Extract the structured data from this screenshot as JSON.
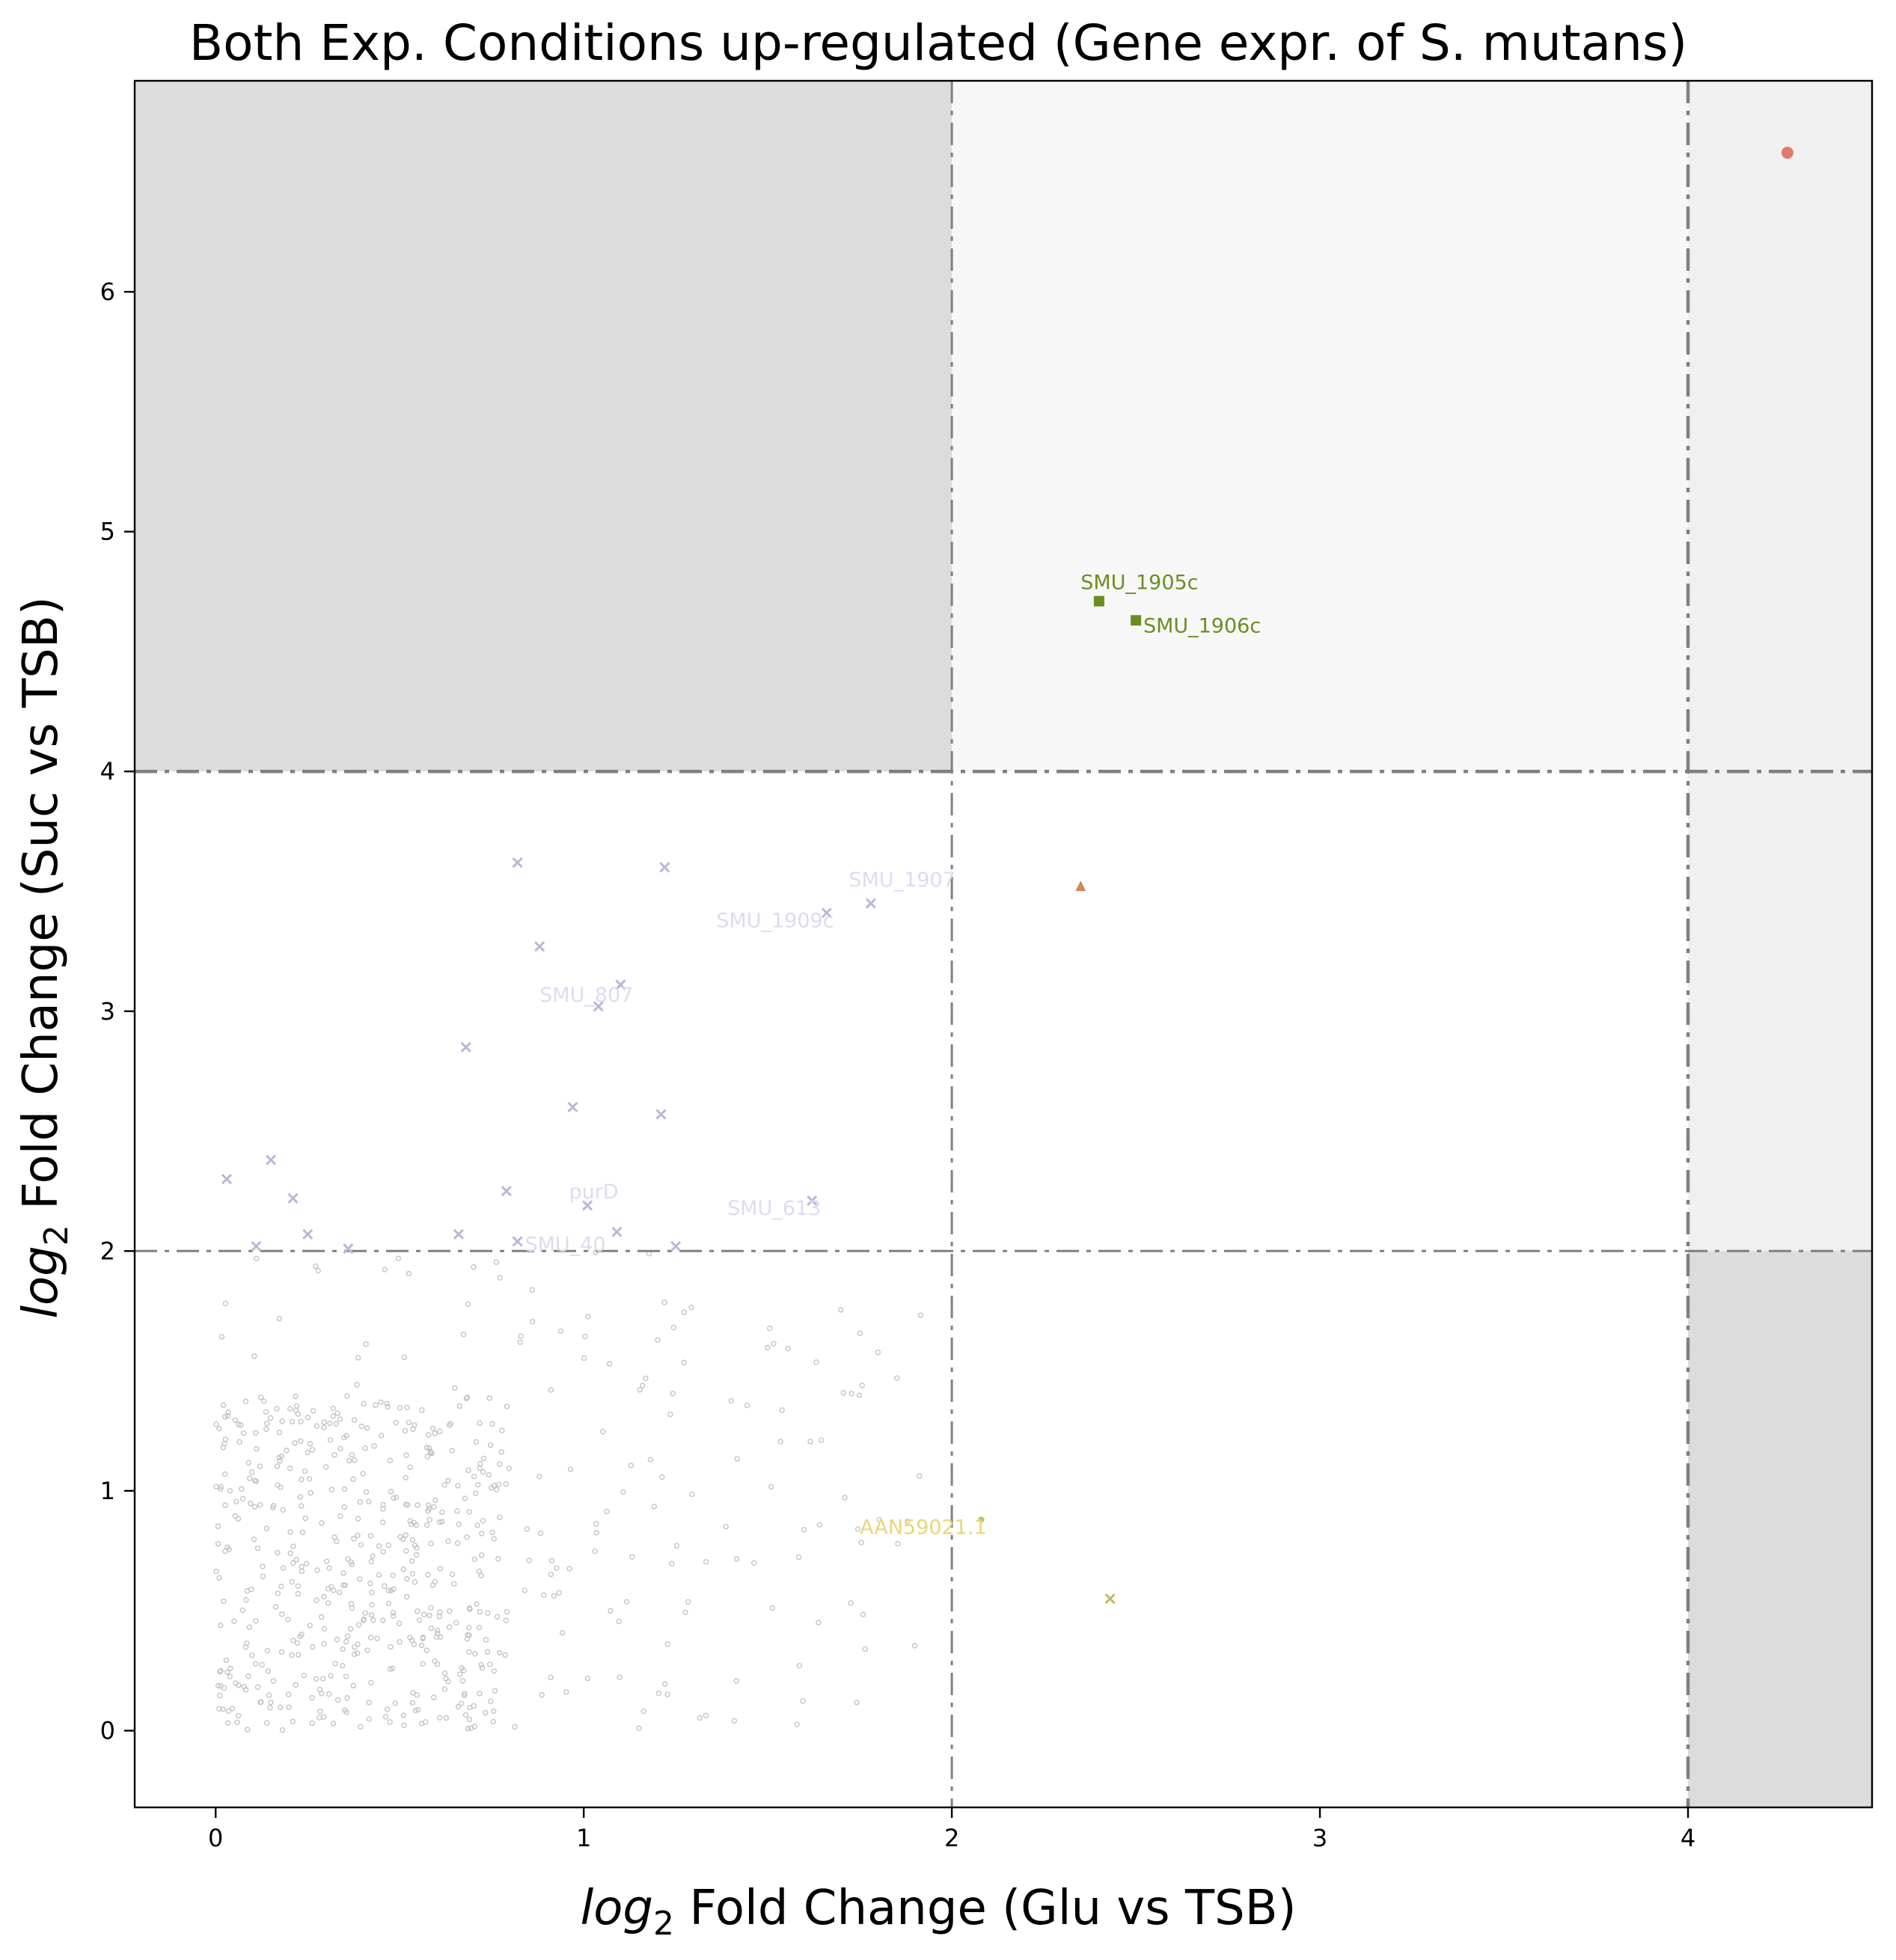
{
  "chart_data": {
    "type": "scatter",
    "title": "Both Exp. Conditions up-regulated (Gene expr. of S. mutans)",
    "xlabel": {
      "italic": "log",
      "sub": "2",
      "rest": " Fold Change (Glu vs TSB)"
    },
    "ylabel": {
      "italic": "log",
      "sub": "2",
      "rest": " Fold Change (Suc vs TSB)"
    },
    "xlim": [
      -0.22,
      4.5
    ],
    "ylim": [
      -0.32,
      6.88
    ],
    "xticks": [
      0,
      1,
      2,
      3,
      4
    ],
    "yticks": [
      0,
      1,
      2,
      3,
      4,
      5,
      6
    ],
    "grid": false,
    "legend": "none",
    "threshold_lines": {
      "x": [
        2,
        4
      ],
      "y": [
        2,
        4
      ]
    },
    "regions": [
      {
        "x": [
          -0.22,
          2
        ],
        "y": [
          4,
          6.88
        ],
        "color": "#dcdcdc"
      },
      {
        "x": [
          2,
          4
        ],
        "y": [
          4,
          6.88
        ],
        "color": "#f7f7f7"
      },
      {
        "x": [
          4,
          4.5
        ],
        "y": [
          2,
          6.88
        ],
        "color": "#f0f0f0"
      },
      {
        "x": [
          4,
          4.5
        ],
        "y": [
          -0.32,
          2
        ],
        "color": "#dcdcdc"
      }
    ],
    "colors": {
      "background_points": "#c4c4c4",
      "mid_points": "#b8b8d8",
      "mid_labels": "#dcdcf0",
      "top_green": "#6b8e23",
      "top_red": "#e07a6a",
      "orange": "#d2875a",
      "yellow": "#e9d67a",
      "threshold_line": "#808080"
    },
    "highlight_points": [
      {
        "x": 4.27,
        "y": 6.58,
        "shape": "circle",
        "color": "#e07a6a"
      },
      {
        "x": 2.4,
        "y": 4.71,
        "shape": "square",
        "color": "#6b8e23"
      },
      {
        "x": 2.5,
        "y": 4.63,
        "shape": "square",
        "color": "#6b8e23"
      },
      {
        "x": 2.35,
        "y": 3.52,
        "shape": "triangle",
        "color": "#d2875a"
      },
      {
        "x": 2.43,
        "y": 0.55,
        "shape": "cross",
        "color": "#c8b860"
      },
      {
        "x": 2.08,
        "y": 0.88,
        "shape": "dot",
        "color": "#c8b860"
      }
    ],
    "mid_points": [
      {
        "x": 0.82,
        "y": 3.62
      },
      {
        "x": 1.22,
        "y": 3.6
      },
      {
        "x": 0.88,
        "y": 3.27
      },
      {
        "x": 1.1,
        "y": 3.11
      },
      {
        "x": 1.04,
        "y": 3.02
      },
      {
        "x": 0.68,
        "y": 2.85
      },
      {
        "x": 0.97,
        "y": 2.6
      },
      {
        "x": 1.21,
        "y": 2.57
      },
      {
        "x": 1.66,
        "y": 3.41
      },
      {
        "x": 1.78,
        "y": 3.45
      },
      {
        "x": 0.03,
        "y": 2.3
      },
      {
        "x": 0.15,
        "y": 2.38
      },
      {
        "x": 0.21,
        "y": 2.22
      },
      {
        "x": 0.25,
        "y": 2.07
      },
      {
        "x": 0.11,
        "y": 2.02
      },
      {
        "x": 0.36,
        "y": 2.01
      },
      {
        "x": 0.79,
        "y": 2.25
      },
      {
        "x": 1.01,
        "y": 2.19
      },
      {
        "x": 1.62,
        "y": 2.21
      },
      {
        "x": 0.66,
        "y": 2.07
      },
      {
        "x": 0.82,
        "y": 2.04
      },
      {
        "x": 1.09,
        "y": 2.08
      },
      {
        "x": 1.25,
        "y": 2.02
      }
    ],
    "annotations": [
      {
        "text": "SMU_1905c",
        "x": 2.35,
        "y": 4.76,
        "color": "#6b8e23"
      },
      {
        "text": "SMU_1906c",
        "x": 2.52,
        "y": 4.58,
        "color": "#6b8e23"
      },
      {
        "text": "SMU_1907",
        "x": 1.72,
        "y": 3.52,
        "color": "#dcdcf0"
      },
      {
        "text": "SMU_1909c",
        "x": 1.36,
        "y": 3.35,
        "color": "#dcdcf0"
      },
      {
        "text": "SMU_807",
        "x": 0.88,
        "y": 3.04,
        "color": "#dcdcf0"
      },
      {
        "text": "purD",
        "x": 0.96,
        "y": 2.22,
        "color": "#dcdcf0"
      },
      {
        "text": "SMU_613",
        "x": 1.39,
        "y": 2.15,
        "color": "#dcdcf0"
      },
      {
        "text": "SMU_40",
        "x": 0.84,
        "y": 2.0,
        "color": "#dcdcf0"
      },
      {
        "text": "AAN59021.1",
        "x": 1.75,
        "y": 0.82,
        "color": "#e9d67a"
      }
    ],
    "background_count": 650
  }
}
